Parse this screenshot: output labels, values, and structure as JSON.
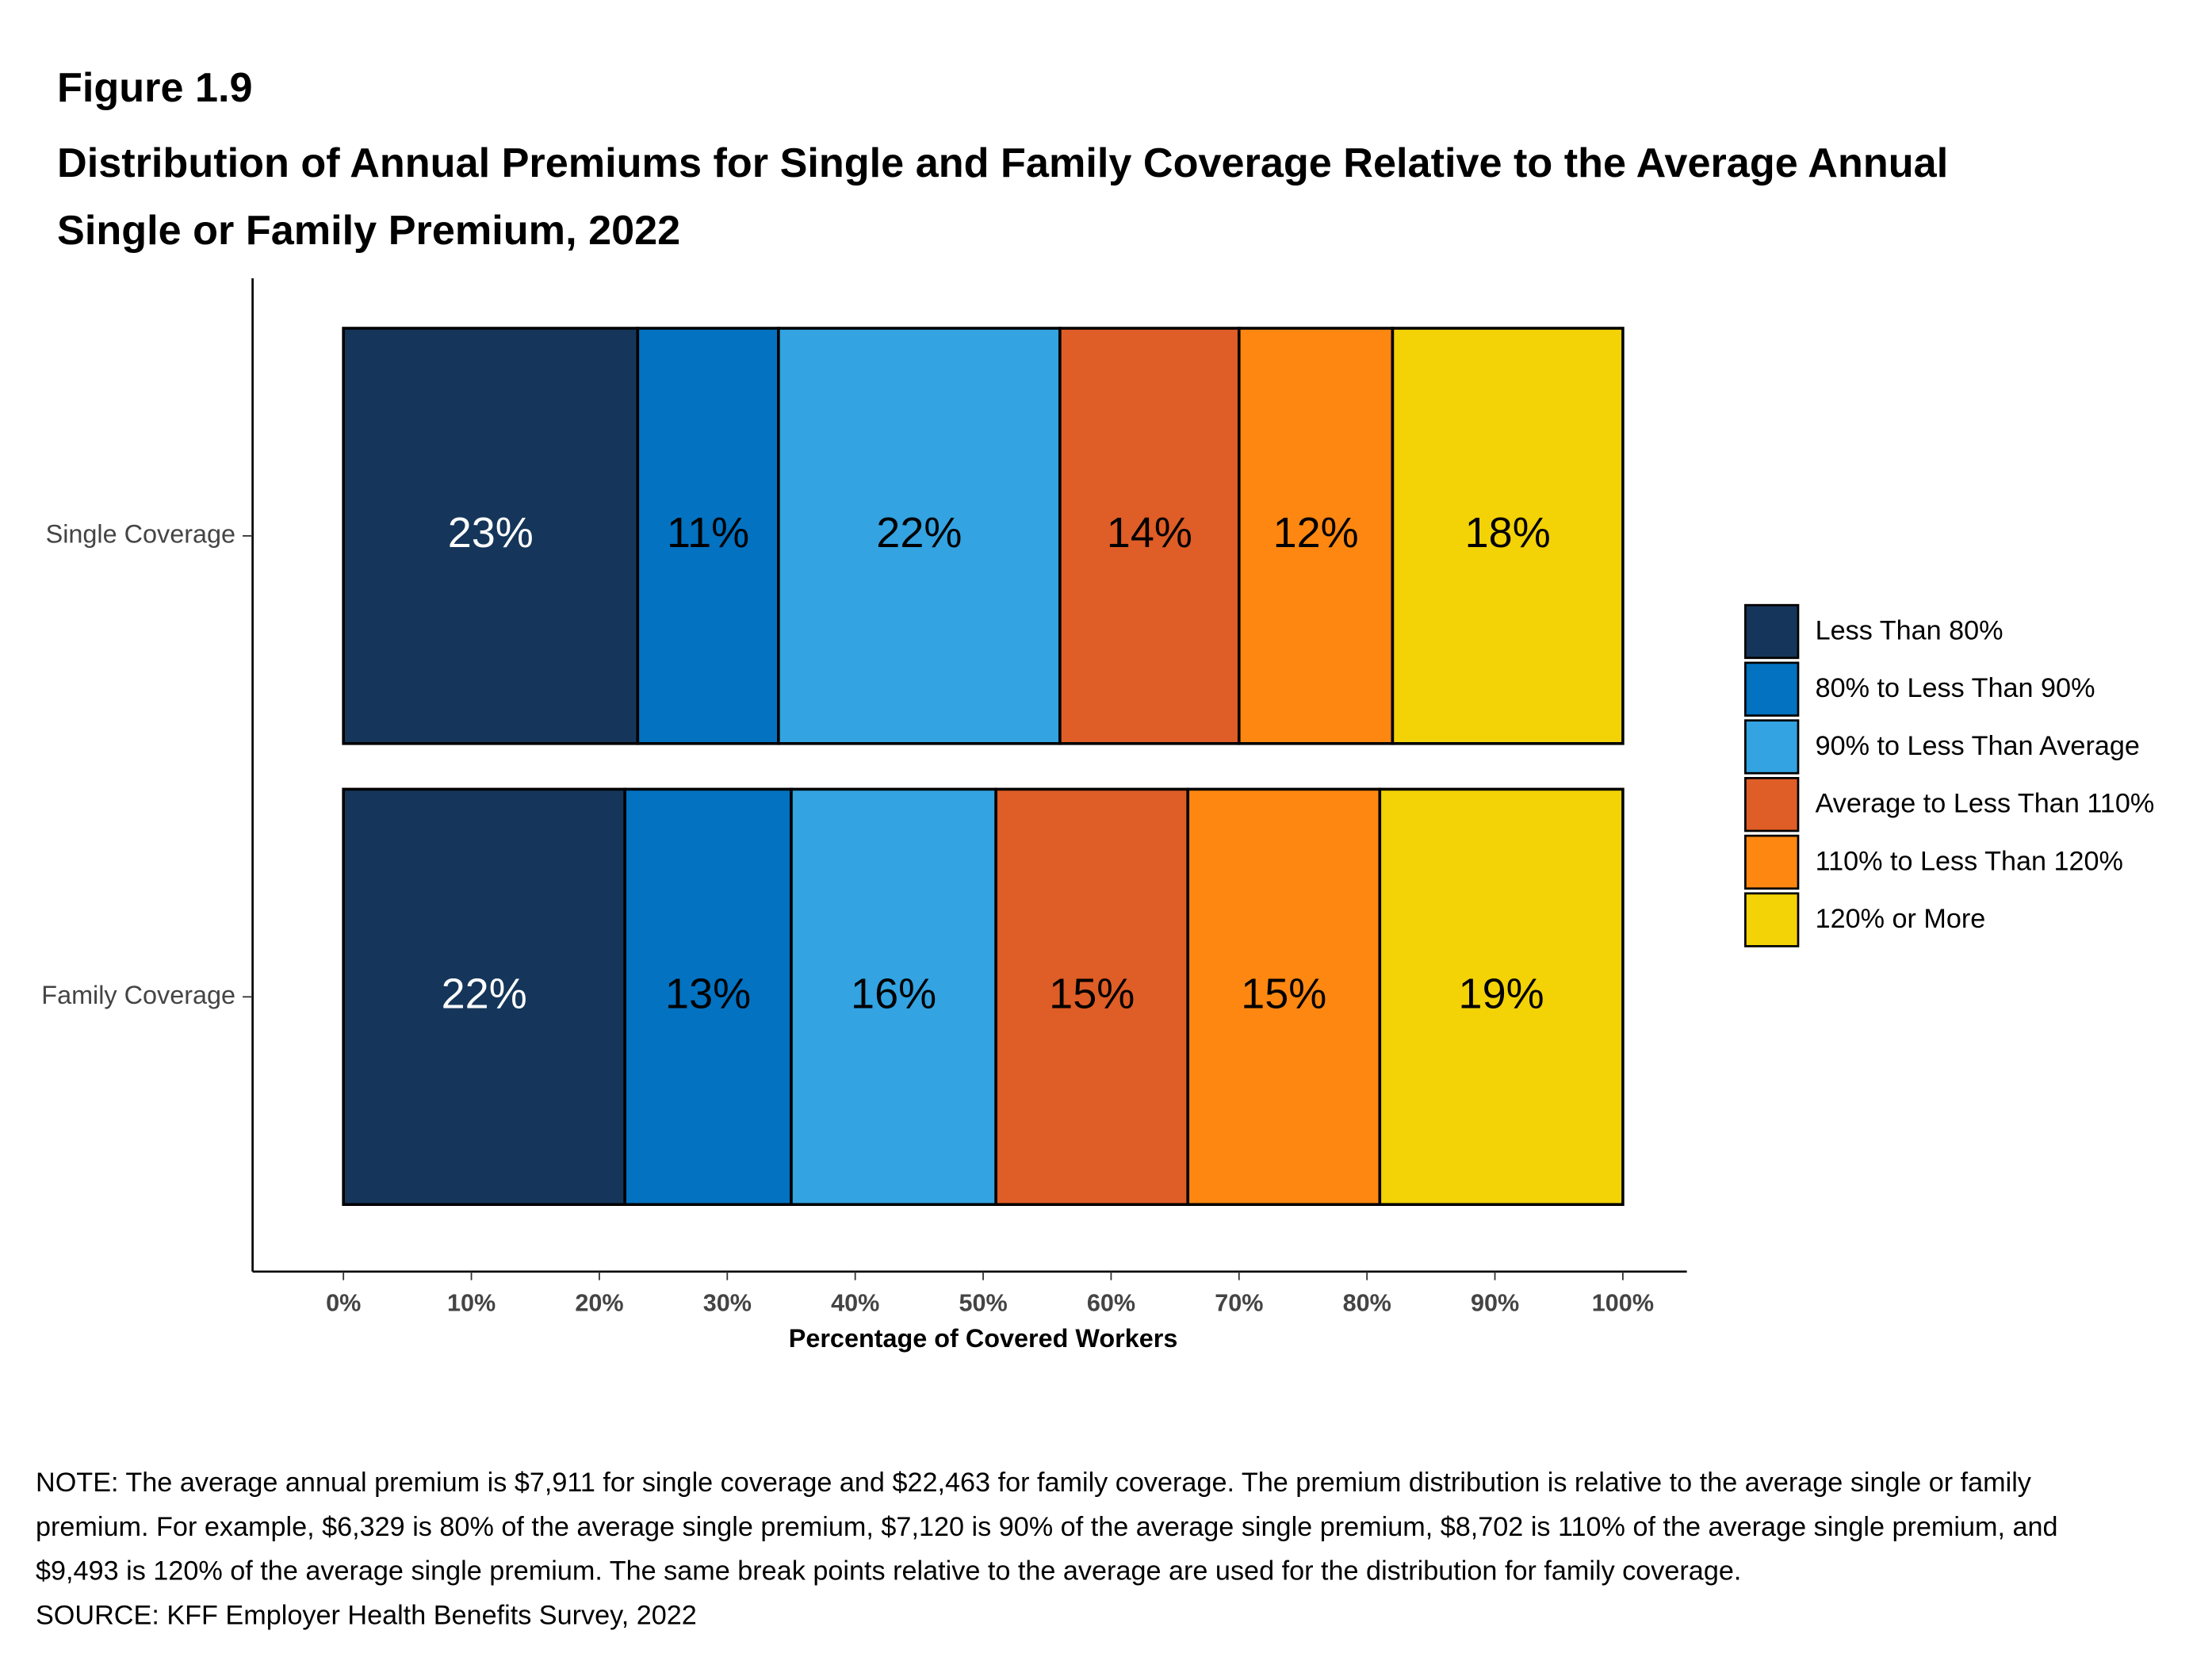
{
  "figure_label": "Figure 1.9",
  "chart_data": {
    "type": "stacked-barh",
    "title": "Distribution of Annual Premiums for Single and Family Coverage Relative to the Average Annual Single or Family Premium, 2022",
    "categories": [
      "Single Coverage",
      "Family Coverage"
    ],
    "series": [
      {
        "name": "Less Than 80%",
        "color": "#15365a",
        "label_color": "#ffffff",
        "values": [
          23,
          22
        ],
        "value_labels": [
          "23%",
          "22%"
        ]
      },
      {
        "name": "80% to Less Than 90%",
        "color": "#0272c1",
        "label_color": "#000000",
        "values": [
          11,
          13
        ],
        "value_labels": [
          "11%",
          "13%"
        ]
      },
      {
        "name": "90% to Less Than Average",
        "color": "#33a3e1",
        "label_color": "#000000",
        "values": [
          22,
          16
        ],
        "value_labels": [
          "22%",
          "16%"
        ]
      },
      {
        "name": "Average to Less Than 110%",
        "color": "#df5d26",
        "label_color": "#000000",
        "values": [
          14,
          15
        ],
        "value_labels": [
          "14%",
          "15%"
        ]
      },
      {
        "name": "110% to Less Than 120%",
        "color": "#fd8710",
        "label_color": "#000000",
        "values": [
          12,
          15
        ],
        "value_labels": [
          "12%",
          "15%"
        ]
      },
      {
        "name": "120% or More",
        "color": "#f3d206",
        "label_color": "#000000",
        "values": [
          18,
          19
        ],
        "value_labels": [
          "18%",
          "19%"
        ]
      }
    ],
    "xlim": [
      -7.1,
      105.0
    ],
    "xticks": [
      {
        "value": 0,
        "label": "0%"
      },
      {
        "value": 10,
        "label": "10%"
      },
      {
        "value": 20,
        "label": "20%"
      },
      {
        "value": 30,
        "label": "30%"
      },
      {
        "value": 40,
        "label": "40%"
      },
      {
        "value": 50,
        "label": "50%"
      },
      {
        "value": 60,
        "label": "60%"
      },
      {
        "value": 70,
        "label": "70%"
      },
      {
        "value": 80,
        "label": "80%"
      },
      {
        "value": 90,
        "label": "90%"
      },
      {
        "value": 100,
        "label": "100%"
      }
    ],
    "xlabel": "Percentage of Covered Workers",
    "legend": "right"
  },
  "note": "NOTE: The average annual premium is $7,911 for single coverage and $22,463 for family coverage. The premium distribution is relative to the average single or family premium. For example, $6,329 is 80% of the average single premium, $7,120 is 90% of the average single premium, $8,702 is 110% of the average single premium, and $9,493 is 120% of the average single premium. The same break points relative to the average are used for the distribution for family coverage.",
  "source": "SOURCE: KFF Employer Health Benefits Survey, 2022"
}
